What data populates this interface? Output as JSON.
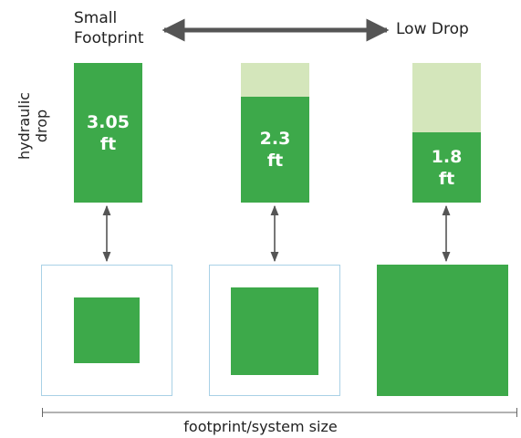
{
  "top": {
    "left_label": [
      "Small",
      "Footprint"
    ],
    "right_label": "Low Drop"
  },
  "y_axis_label": [
    "hydraulic",
    "drop"
  ],
  "x_axis_label": "footprint/system size",
  "columns": [
    {
      "value": "3.05",
      "unit": "ft",
      "drop_fraction": 1.0
    },
    {
      "value": "2.3",
      "unit": "ft",
      "drop_fraction": 0.75
    },
    {
      "value": "1.8",
      "unit": "ft",
      "drop_fraction": 0.52
    }
  ],
  "colors": {
    "green": "#3da94a",
    "light_green": "#d4e6bb",
    "frame": "#a9d1e6",
    "arrow": "#555555"
  }
}
